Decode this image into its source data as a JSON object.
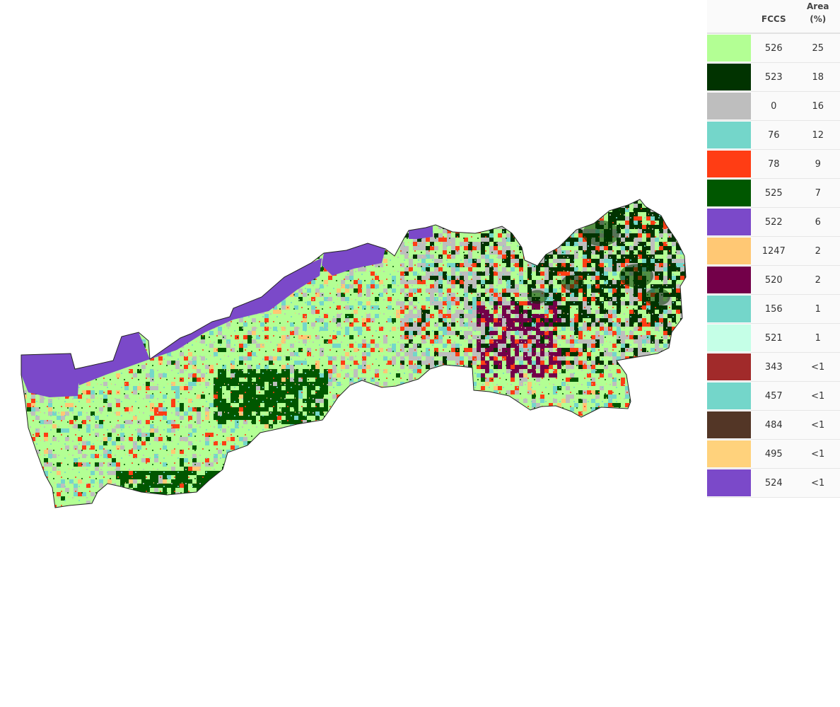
{
  "legend": {
    "headers": {
      "code": "FCCS",
      "area_line1": "Area",
      "area_line2": "(%)"
    },
    "rows": [
      {
        "code": "526",
        "area": "25",
        "color": "#b3ff94"
      },
      {
        "code": "523",
        "area": "18",
        "color": "#013300"
      },
      {
        "code": "0",
        "area": "16",
        "color": "#bebebe"
      },
      {
        "code": "76",
        "area": "12",
        "color": "#74d6ca"
      },
      {
        "code": "78",
        "area": "9",
        "color": "#ff3d14"
      },
      {
        "code": "525",
        "area": "7",
        "color": "#005700"
      },
      {
        "code": "522",
        "area": "6",
        "color": "#7b49c9"
      },
      {
        "code": "1247",
        "area": "2",
        "color": "#ffc874"
      },
      {
        "code": "520",
        "area": "2",
        "color": "#730049"
      },
      {
        "code": "156",
        "area": "1",
        "color": "#74d6ca"
      },
      {
        "code": "521",
        "area": "1",
        "color": "#c5ffe7"
      },
      {
        "code": "343",
        "area": "<1",
        "color": "#a12a2a"
      },
      {
        "code": "457",
        "area": "<1",
        "color": "#74d6ca"
      },
      {
        "code": "484",
        "area": "<1",
        "color": "#533626"
      },
      {
        "code": "495",
        "area": "<1",
        "color": "#ffd27c"
      },
      {
        "code": "524",
        "area": "<1",
        "color": "#7b49c9"
      }
    ]
  }
}
